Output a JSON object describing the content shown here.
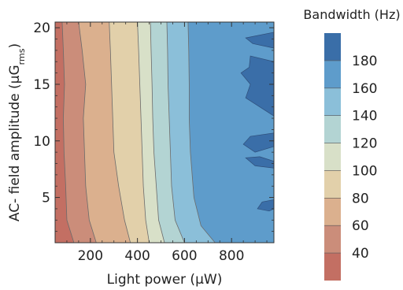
{
  "chart_data": {
    "type": "contour",
    "xlabel": "Light power (μW)",
    "ylabel_main": "AC- field amplitude (μG",
    "ylabel_sub": "rms",
    "ylabel_close": ")",
    "xlim": [
      50,
      980
    ],
    "ylim": [
      1,
      20.5
    ],
    "xticks": [
      "200",
      "400",
      "600",
      "800"
    ],
    "yticks": [
      "5",
      "10",
      "15",
      "20"
    ],
    "colorbar": {
      "title": "Bandwidth (Hz)",
      "range": [
        20,
        200
      ],
      "labels": [
        "40",
        "60",
        "80",
        "100",
        "120",
        "140",
        "160",
        "180"
      ],
      "bands": [
        {
          "range": [
            20,
            40
          ],
          "color": "#c36f63"
        },
        {
          "range": [
            40,
            60
          ],
          "color": "#cb8d7a"
        },
        {
          "range": [
            60,
            80
          ],
          "color": "#dbb08e"
        },
        {
          "range": [
            80,
            100
          ],
          "color": "#e2d0aa"
        },
        {
          "range": [
            100,
            120
          ],
          "color": "#d8e0c8"
        },
        {
          "range": [
            120,
            140
          ],
          "color": "#b3d4d3"
        },
        {
          "range": [
            140,
            160
          ],
          "color": "#8bbfd9"
        },
        {
          "range": [
            160,
            180
          ],
          "color": "#5e9ccb"
        },
        {
          "range": [
            180,
            200
          ],
          "color": "#3a6ea8"
        }
      ]
    },
    "contour_boundaries": [
      {
        "level": 40,
        "points": [
          [
            130,
            1
          ],
          [
            100,
            3
          ],
          [
            95,
            6
          ],
          [
            88,
            9
          ],
          [
            85,
            12
          ],
          [
            90,
            15
          ],
          [
            85,
            18
          ],
          [
            80,
            20.5
          ]
        ]
      },
      {
        "level": 60,
        "points": [
          [
            225,
            1
          ],
          [
            195,
            3
          ],
          [
            180,
            6
          ],
          [
            175,
            9
          ],
          [
            170,
            12
          ],
          [
            180,
            15
          ],
          [
            165,
            18
          ],
          [
            150,
            20.5
          ]
        ]
      },
      {
        "level": 80,
        "points": [
          [
            370,
            1
          ],
          [
            345,
            3
          ],
          [
            320,
            6
          ],
          [
            300,
            9
          ],
          [
            295,
            12
          ],
          [
            290,
            15
          ],
          [
            285,
            18
          ],
          [
            280,
            20.5
          ]
        ]
      },
      {
        "level": 100,
        "points": [
          [
            450,
            1
          ],
          [
            435,
            3
          ],
          [
            425,
            6
          ],
          [
            420,
            9
          ],
          [
            415,
            12
          ],
          [
            410,
            15
          ],
          [
            405,
            18
          ],
          [
            400,
            20.5
          ]
        ]
      },
      {
        "level": 120,
        "points": [
          [
            515,
            1
          ],
          [
            490,
            3
          ],
          [
            480,
            6
          ],
          [
            470,
            9
          ],
          [
            465,
            12
          ],
          [
            462,
            15
          ],
          [
            458,
            18
          ],
          [
            455,
            20.5
          ]
        ]
      },
      {
        "level": 140,
        "points": [
          [
            600,
            1
          ],
          [
            560,
            3
          ],
          [
            545,
            6
          ],
          [
            540,
            9
          ],
          [
            535,
            12
          ],
          [
            530,
            15
          ],
          [
            528,
            18
          ],
          [
            525,
            20.5
          ]
        ]
      },
      {
        "level": 160,
        "points": [
          [
            730,
            1
          ],
          [
            670,
            2.5
          ],
          [
            640,
            5
          ],
          [
            625,
            9
          ],
          [
            620,
            12
          ],
          [
            620,
            15
          ],
          [
            618,
            18
          ],
          [
            615,
            20.5
          ]
        ]
      }
    ],
    "islands_180": [
      [
        [
          980,
          17
        ],
        [
          880,
          17.5
        ],
        [
          875,
          16.5
        ],
        [
          840,
          16
        ],
        [
          880,
          15
        ],
        [
          860,
          13.8
        ],
        [
          980,
          12.2
        ]
      ],
      [
        [
          980,
          19.6
        ],
        [
          860,
          19.1
        ],
        [
          890,
          18.6
        ],
        [
          980,
          18.2
        ]
      ],
      [
        [
          980,
          9.5
        ],
        [
          900,
          9
        ],
        [
          850,
          9.7
        ],
        [
          880,
          10.4
        ],
        [
          980,
          10.7
        ]
      ],
      [
        [
          980,
          7.6
        ],
        [
          900,
          7.8
        ],
        [
          860,
          8.5
        ],
        [
          920,
          8.6
        ],
        [
          980,
          8.2
        ]
      ],
      [
        [
          980,
          4.8
        ],
        [
          930,
          4.6
        ],
        [
          910,
          4
        ],
        [
          960,
          3.8
        ],
        [
          980,
          4
        ]
      ]
    ]
  }
}
